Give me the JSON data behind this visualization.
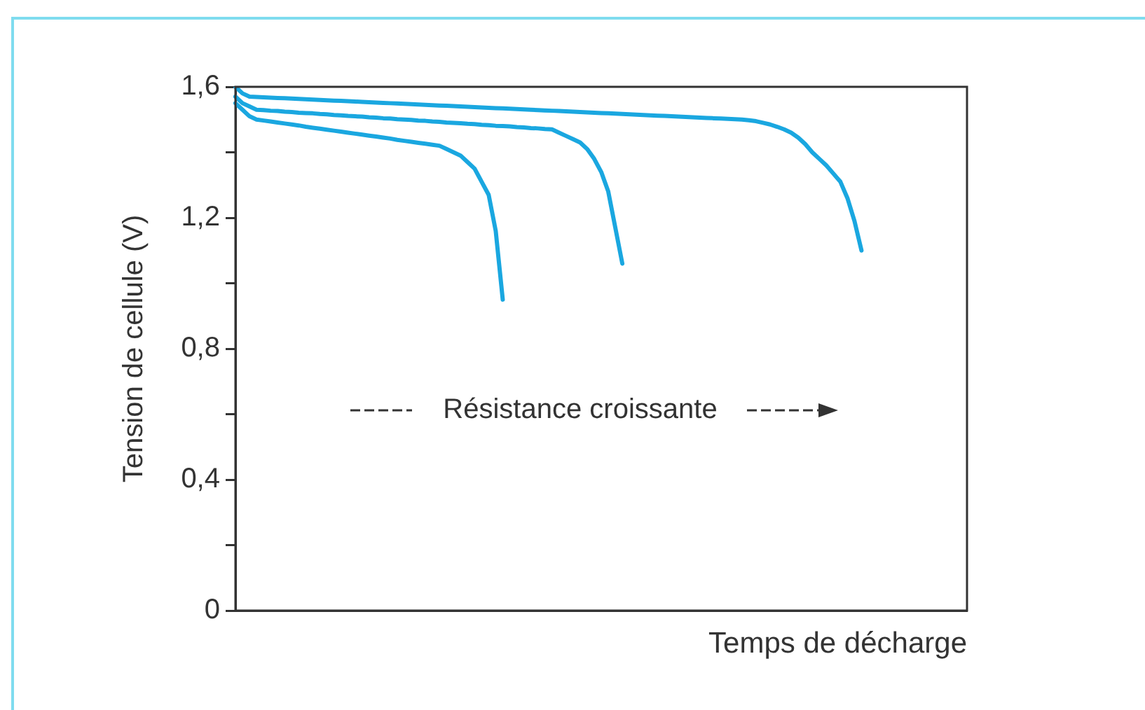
{
  "chart_data": {
    "type": "line",
    "xlabel": "Temps de décharge",
    "ylabel": "Tension de cellule (V)",
    "categories": [
      null,
      null,
      null,
      null,
      null,
      null,
      null,
      null,
      null,
      null,
      null,
      null,
      null,
      null,
      null,
      null,
      null,
      null,
      null,
      null,
      null,
      null,
      null,
      null,
      null,
      null,
      null,
      null,
      null,
      null,
      null,
      null,
      null,
      null,
      null,
      null,
      null,
      null,
      null,
      null,
      null,
      null,
      null,
      null,
      null,
      null,
      null,
      null,
      null,
      null,
      null,
      null,
      null,
      null,
      null,
      null,
      null,
      null,
      null,
      null,
      null,
      null,
      null,
      null,
      null,
      null,
      null,
      null,
      null,
      null,
      null,
      null,
      null,
      null,
      null,
      null,
      null,
      null,
      null,
      null,
      null,
      null,
      null,
      null,
      null,
      null,
      null,
      null,
      null,
      null,
      null,
      null,
      null,
      null,
      null,
      null,
      null,
      null,
      null,
      null,
      null,
      null,
      null,
      null,
      null
    ],
    "series": [
      {
        "color": "#1aa7e0",
        "values": [
          1.55,
          1.53,
          1.51,
          1.5,
          1.497,
          1.494,
          1.491,
          1.488,
          1.485,
          1.482,
          1.478,
          1.475,
          1.472,
          1.469,
          1.466,
          1.463,
          1.46,
          1.457,
          1.454,
          1.451,
          1.448,
          1.445,
          1.442,
          1.438,
          1.435,
          1.432,
          1.429,
          1.426,
          1.423,
          1.42,
          1.41,
          1.4,
          1.39,
          1.37,
          1.35,
          1.31,
          1.27,
          1.16,
          0.95,
          null,
          null,
          null,
          null,
          null,
          null,
          null,
          null,
          null,
          null,
          null,
          null,
          null,
          null,
          null,
          null,
          null,
          null,
          null,
          null,
          null,
          null,
          null,
          null,
          null,
          null,
          null,
          null,
          null,
          null,
          null,
          null,
          null,
          null,
          null,
          null,
          null,
          null,
          null,
          null,
          null,
          null,
          null,
          null,
          null,
          null,
          null,
          null,
          null,
          null,
          null,
          null,
          null,
          null,
          null,
          null,
          null,
          null,
          null,
          null,
          null,
          null,
          null,
          null,
          null,
          null
        ]
      },
      {
        "color": "#1aa7e0",
        "values": [
          1.57,
          1.55,
          1.54,
          1.53,
          1.529,
          1.527,
          1.526,
          1.524,
          1.523,
          1.521,
          1.52,
          1.519,
          1.517,
          1.516,
          1.514,
          1.513,
          1.511,
          1.51,
          1.509,
          1.507,
          1.506,
          1.504,
          1.503,
          1.501,
          1.5,
          1.499,
          1.497,
          1.496,
          1.494,
          1.493,
          1.491,
          1.49,
          1.489,
          1.487,
          1.486,
          1.484,
          1.483,
          1.481,
          1.48,
          1.479,
          1.477,
          1.476,
          1.474,
          1.473,
          1.471,
          1.47,
          1.46,
          1.45,
          1.44,
          1.43,
          1.41,
          1.38,
          1.34,
          1.28,
          1.17,
          1.06,
          null,
          null,
          null,
          null,
          null,
          null,
          null,
          null,
          null,
          null,
          null,
          null,
          null,
          null,
          null,
          null,
          null,
          null,
          null,
          null,
          null,
          null,
          null,
          null,
          null,
          null,
          null,
          null,
          null,
          null,
          null,
          null,
          null,
          null,
          null,
          null,
          null,
          null,
          null,
          null,
          null,
          null,
          null,
          null,
          null,
          null,
          null,
          null,
          null
        ]
      },
      {
        "color": "#1aa7e0",
        "values": [
          1.6,
          1.58,
          1.57,
          1.569,
          1.568,
          1.567,
          1.566,
          1.565,
          1.564,
          1.563,
          1.562,
          1.561,
          1.56,
          1.559,
          1.558,
          1.557,
          1.556,
          1.555,
          1.554,
          1.553,
          1.552,
          1.551,
          1.55,
          1.549,
          1.548,
          1.547,
          1.546,
          1.545,
          1.544,
          1.543,
          1.542,
          1.541,
          1.54,
          1.539,
          1.538,
          1.537,
          1.536,
          1.535,
          1.534,
          1.533,
          1.532,
          1.531,
          1.53,
          1.529,
          1.528,
          1.527,
          1.526,
          1.525,
          1.524,
          1.523,
          1.522,
          1.521,
          1.52,
          1.519,
          1.518,
          1.517,
          1.516,
          1.515,
          1.514,
          1.513,
          1.512,
          1.511,
          1.51,
          1.509,
          1.508,
          1.507,
          1.506,
          1.505,
          1.504,
          1.503,
          1.502,
          1.501,
          1.5,
          1.498,
          1.495,
          1.49,
          1.485,
          1.478,
          1.47,
          1.46,
          1.445,
          1.425,
          1.4,
          1.38,
          1.36,
          1.335,
          1.31,
          1.26,
          1.19,
          1.1,
          null,
          null,
          null,
          null,
          null,
          null,
          null,
          null,
          null,
          null,
          null,
          null,
          null,
          null,
          null
        ]
      }
    ],
    "ylim": [
      0,
      1.6
    ],
    "yticks": [
      0,
      {
        "value": 0.2,
        "label": null
      },
      {
        "value": 0.4,
        "label": "0,4"
      },
      {
        "value": 0.6,
        "label": null
      },
      {
        "value": 0.8,
        "label": "0,8"
      },
      {
        "value": 1.0,
        "label": null
      },
      {
        "value": 1.2,
        "label": "1,2"
      },
      {
        "value": 1.4,
        "label": null
      },
      {
        "value": 1.6,
        "label": "1,6"
      }
    ],
    "tick_labels": "y",
    "grid": false,
    "legend": false,
    "marker": "none",
    "line_style": "solid",
    "annotations": [
      "Résistance croissante"
    ]
  }
}
